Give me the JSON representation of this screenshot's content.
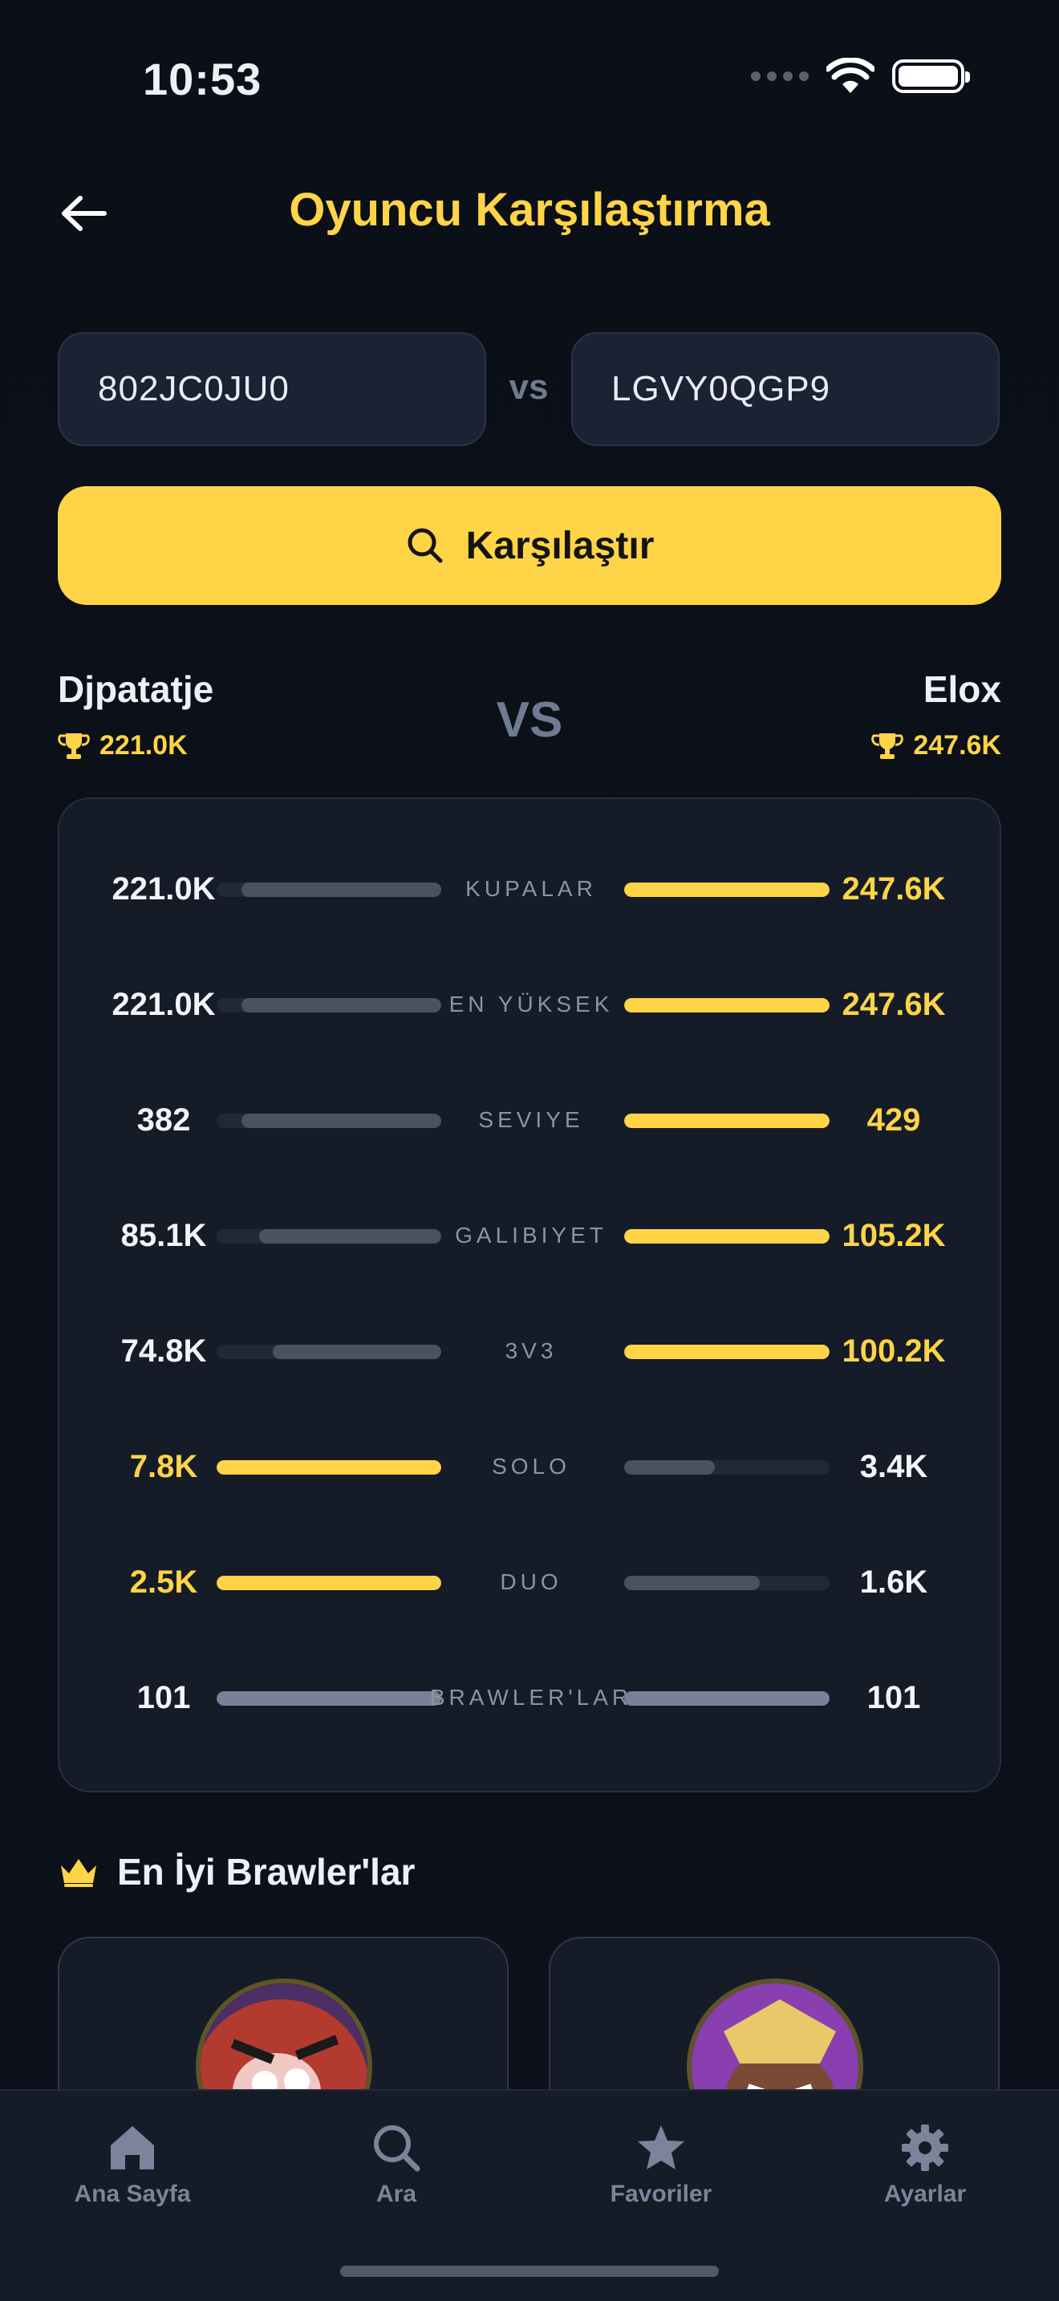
{
  "status": {
    "time": "10:53"
  },
  "header": {
    "title": "Oyuncu Karşılaştırma"
  },
  "inputs": {
    "player1_tag": "802JC0JU0",
    "player2_tag": "LGVY0QGP9",
    "vs": "vs"
  },
  "compare_button": {
    "label": "Karşılaştır"
  },
  "players": {
    "p1": {
      "name": "Djpatatje",
      "trophies": "221.0K"
    },
    "p2": {
      "name": "Elox",
      "trophies": "247.6K"
    },
    "vs": "VS"
  },
  "stats": [
    {
      "label": "KUPALAR",
      "left": "221.0K",
      "right": "247.6K",
      "left_ratio": 0.89,
      "right_ratio": 1.0,
      "winner": "right"
    },
    {
      "label": "EN YÜKSEK",
      "left": "221.0K",
      "right": "247.6K",
      "left_ratio": 0.89,
      "right_ratio": 1.0,
      "winner": "right"
    },
    {
      "label": "SEVIYE",
      "left": "382",
      "right": "429",
      "left_ratio": 0.89,
      "right_ratio": 1.0,
      "winner": "right"
    },
    {
      "label": "GALIBIYET",
      "left": "85.1K",
      "right": "105.2K",
      "left_ratio": 0.81,
      "right_ratio": 1.0,
      "winner": "right"
    },
    {
      "label": "3V3",
      "left": "74.8K",
      "right": "100.2K",
      "left_ratio": 0.75,
      "right_ratio": 1.0,
      "winner": "right"
    },
    {
      "label": "SOLO",
      "left": "7.8K",
      "right": "3.4K",
      "left_ratio": 1.0,
      "right_ratio": 0.44,
      "winner": "left"
    },
    {
      "label": "DUO",
      "left": "2.5K",
      "right": "1.6K",
      "left_ratio": 1.0,
      "right_ratio": 0.66,
      "winner": "left"
    },
    {
      "label": "BRAWLER'LAR",
      "left": "101",
      "right": "101",
      "left_ratio": 1.0,
      "right_ratio": 1.0,
      "winner": "tie"
    }
  ],
  "best_brawlers": {
    "title": "En İyi Brawler'lar"
  },
  "nav": [
    {
      "label": "Ana Sayfa",
      "icon": "home-icon"
    },
    {
      "label": "Ara",
      "icon": "search-icon"
    },
    {
      "label": "Favoriler",
      "icon": "star-icon"
    },
    {
      "label": "Ayarlar",
      "icon": "gear-icon"
    }
  ],
  "colors": {
    "accent": "#ffd447",
    "background": "#0d111b",
    "card": "#151b27"
  }
}
